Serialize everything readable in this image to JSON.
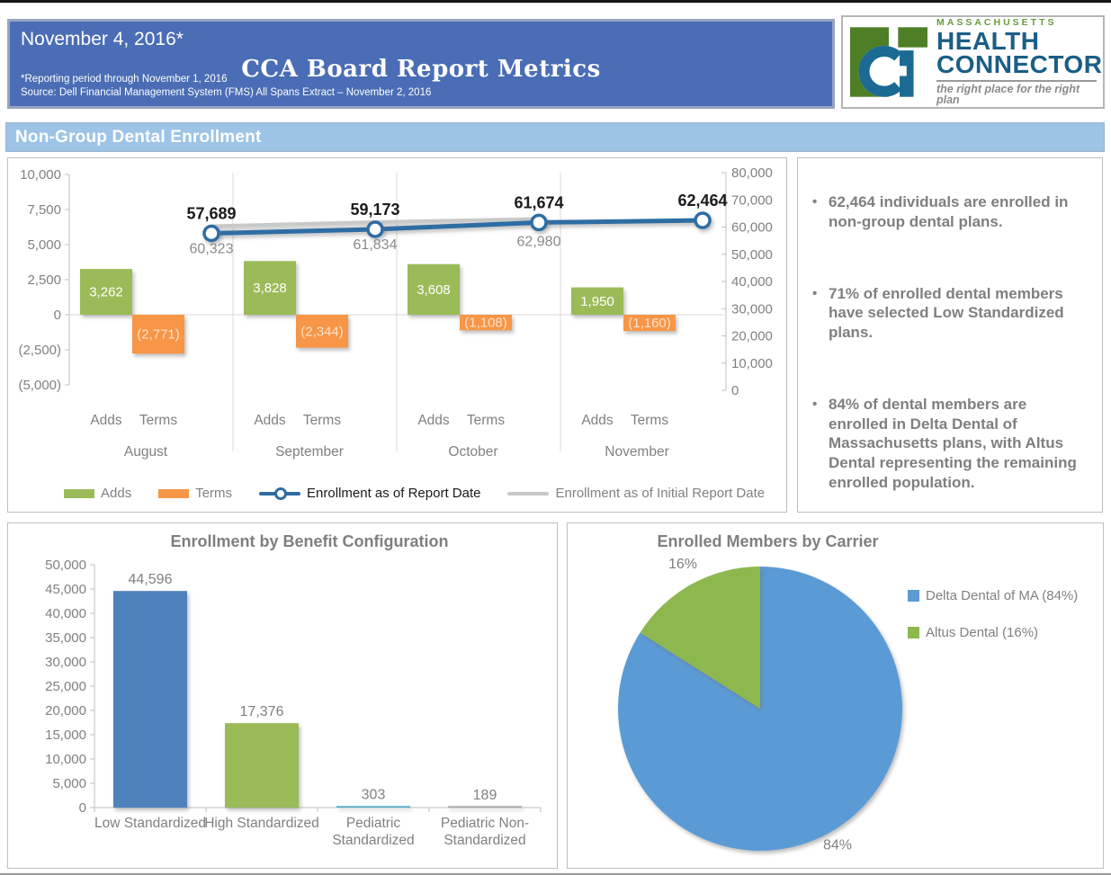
{
  "header": {
    "date": "November 4, 2016*",
    "title": "CCA Board Report Metrics",
    "footnote_1": "*Reporting period through November 1, 2016",
    "footnote_2": "Source: Dell Financial Management System (FMS) All Spans Extract – November 2, 2016"
  },
  "logo": {
    "region": "MASSACHUSETTS",
    "name_1": "HEALTH",
    "name_2": "CONNECTOR",
    "tagline": "the right place for the right plan"
  },
  "section": {
    "title": "Non-Group Dental Enrollment"
  },
  "bullets": [
    "62,464 individuals are enrolled in non-group dental plans.",
    "71% of enrolled dental members have selected Low Standardized plans.",
    "84% of dental members are enrolled in Delta Dental of Massachusetts plans, with Altus Dental representing the remaining enrolled population."
  ],
  "chart_data": [
    {
      "type": "bar",
      "subtype": "bar-line-combo",
      "title": "",
      "categories": [
        "August",
        "September",
        "October",
        "November"
      ],
      "sub_categories": [
        "Adds",
        "Terms"
      ],
      "bar_series": [
        {
          "name": "Adds",
          "color": "#9bbb59",
          "values": [
            3262,
            3828,
            3608,
            1950
          ],
          "labels": [
            "3,262",
            "3,828",
            "3,608",
            "1,950"
          ]
        },
        {
          "name": "Terms",
          "color": "#f79646",
          "values": [
            -2771,
            -2344,
            -1108,
            -1160
          ],
          "labels": [
            "(2,771)",
            "(2,344)",
            "(1,108)",
            "(1,160)"
          ]
        }
      ],
      "line_series": [
        {
          "name": "Enrollment as of Report Date",
          "color": "#2e6da4",
          "marker": true,
          "values": [
            57689,
            59173,
            61674,
            62464
          ],
          "labels": [
            "57,689",
            "59,173",
            "61,674",
            "62,464"
          ]
        },
        {
          "name": "Enrollment as of Initial Report Date",
          "color": "#c9c9c9",
          "marker": false,
          "values": [
            60323,
            61834,
            62980,
            null
          ],
          "labels": [
            "60,323",
            "61,834",
            "62,980",
            ""
          ]
        }
      ],
      "left_axis": {
        "min": -5000,
        "max": 10000,
        "step": 2500,
        "tick_labels": [
          "10,000",
          "7,500",
          "5,000",
          "2,500",
          "0",
          "(2,500)",
          "(5,000)"
        ]
      },
      "right_axis": {
        "min": 0,
        "max": 80000,
        "step": 10000,
        "tick_labels": [
          "80,000",
          "70,000",
          "60,000",
          "50,000",
          "40,000",
          "30,000",
          "20,000",
          "10,000",
          "0"
        ]
      },
      "grid": false,
      "legend_position": "bottom"
    },
    {
      "type": "bar",
      "title": "Enrollment by Benefit Configuration",
      "categories": [
        "Low Standardized",
        "High Standardized",
        "Pediatric Standardized",
        "Pediatric Non-Standardized"
      ],
      "category_lines": [
        [
          "Low Standardized"
        ],
        [
          "High Standardized"
        ],
        [
          "Pediatric",
          "Standardized"
        ],
        [
          "Pediatric Non-",
          "Standardized"
        ]
      ],
      "values": [
        44596,
        17376,
        303,
        189
      ],
      "value_labels": [
        "44,596",
        "17,376",
        "303",
        "189"
      ],
      "bar_colors": [
        "#4f81bd",
        "#9bbb59",
        "#4bacc6",
        "#a6a6a6"
      ],
      "xlabel": "",
      "ylabel": "",
      "ylim": [
        0,
        50000
      ],
      "ytick_labels": [
        "50,000",
        "45,000",
        "40,000",
        "35,000",
        "30,000",
        "25,000",
        "20,000",
        "15,000",
        "10,000",
        "5,000",
        "0"
      ],
      "grid": false
    },
    {
      "type": "pie",
      "title": "Enrolled Members by Carrier",
      "slices": [
        {
          "name": "Delta Dental of MA (84%)",
          "value": 84,
          "label": "84%",
          "color": "#5b9bd5"
        },
        {
          "name": "Altus Dental (16%)",
          "value": 16,
          "label": "16%",
          "color": "#8cb84e"
        }
      ],
      "start_angle_deg": 0,
      "direction": "clockwise",
      "legend_position": "right"
    }
  ],
  "colors": {
    "header_bg": "#4a6db5",
    "header_border": "#98a4bf",
    "section_bg": "#9dc3e6",
    "logo_green": "#4e7f27",
    "logo_blue": "#1b6a94",
    "text_gray": "#7f7f7f",
    "axis_gray": "#bfbfbf"
  }
}
